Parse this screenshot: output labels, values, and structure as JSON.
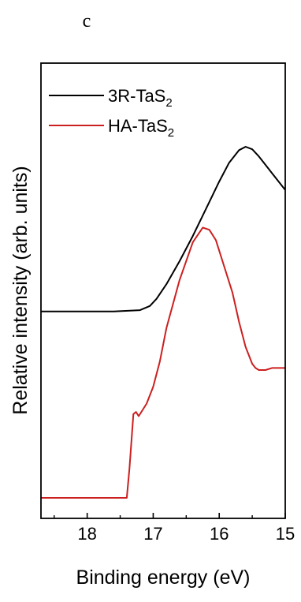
{
  "panel_label": "c",
  "chart_data": {
    "type": "line",
    "xlabel": "Binding energy (eV)",
    "ylabel": "Relative intensity (arb. units)",
    "xlim": [
      18.7,
      15.0
    ],
    "x_reversed": true,
    "x_ticks": [
      18,
      17,
      16,
      15
    ],
    "y_ticks_shown": false,
    "grid": false,
    "legend_position": "top-left",
    "series": [
      {
        "name": "3R-TaS",
        "name_subscript": "2",
        "color": "#000000",
        "x": [
          18.7,
          17.6,
          17.2,
          17.05,
          16.95,
          16.8,
          16.6,
          16.4,
          16.2,
          16.0,
          15.85,
          15.7,
          15.6,
          15.5,
          15.4,
          15.3,
          15.2,
          15.1,
          15.0
        ],
        "y": [
          0.445,
          0.445,
          0.448,
          0.458,
          0.475,
          0.51,
          0.565,
          0.625,
          0.69,
          0.755,
          0.8,
          0.83,
          0.838,
          0.832,
          0.815,
          0.795,
          0.775,
          0.755,
          0.735
        ]
      },
      {
        "name": "HA-TaS",
        "name_subscript": "2",
        "color": "#cc1f1f",
        "x": [
          18.7,
          17.6,
          17.4,
          17.36,
          17.3,
          17.26,
          17.22,
          17.18,
          17.1,
          17.0,
          16.9,
          16.8,
          16.6,
          16.4,
          16.25,
          16.15,
          16.05,
          15.95,
          15.8,
          15.7,
          15.6,
          15.5,
          15.45,
          15.4,
          15.3,
          15.2,
          15.0
        ],
        "y": [
          0.0,
          0.0,
          0.0,
          0.07,
          0.2,
          0.205,
          0.195,
          0.205,
          0.225,
          0.265,
          0.325,
          0.405,
          0.52,
          0.61,
          0.645,
          0.64,
          0.615,
          0.565,
          0.49,
          0.42,
          0.36,
          0.32,
          0.31,
          0.305,
          0.305,
          0.31,
          0.31
        ]
      }
    ]
  }
}
